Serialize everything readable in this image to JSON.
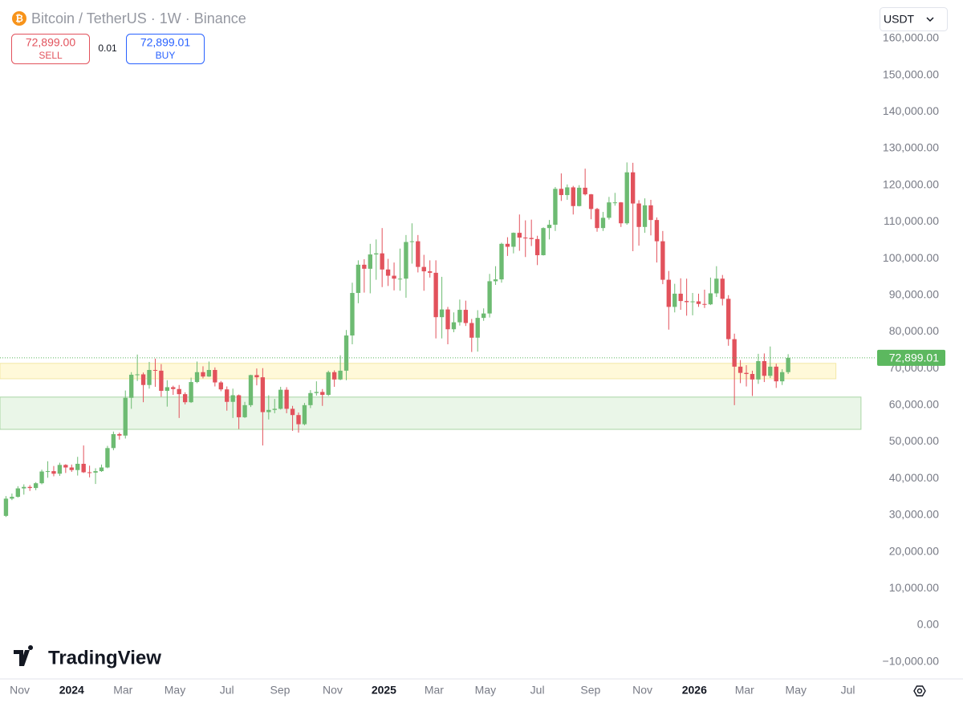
{
  "header": {
    "title": "Bitcoin / TetherUS · 1W · Binance",
    "sell_price": "72,899.00",
    "sell_label": "SELL",
    "spread": "0.01",
    "buy_price": "72,899.01",
    "buy_label": "BUY",
    "currency": "USDT",
    "brand": "TradingView"
  },
  "chart_data": {
    "type": "candlestick",
    "up_color": "#6dbb72",
    "down_color": "#e2525c",
    "ylim": [
      -14450,
      170500
    ],
    "xlim": [
      -1,
      145.5
    ],
    "grid": false,
    "yticks": [
      {
        "value": 160000,
        "label": "160,000.00"
      },
      {
        "value": 150000,
        "label": "150,000.00"
      },
      {
        "value": 140000,
        "label": "140,000.00"
      },
      {
        "value": 130000,
        "label": "130,000.00"
      },
      {
        "value": 120000,
        "label": "120,000.00"
      },
      {
        "value": 110000,
        "label": "110,000.00"
      },
      {
        "value": 100000,
        "label": "100,000.00"
      },
      {
        "value": 90000,
        "label": "90,000.00"
      },
      {
        "value": 80000,
        "label": "80,000.00"
      },
      {
        "value": 70000,
        "label": "70,000.00"
      },
      {
        "value": 60000,
        "label": "60,000.00"
      },
      {
        "value": 50000,
        "label": "50,000.00"
      },
      {
        "value": 40000,
        "label": "40,000.00"
      },
      {
        "value": 30000,
        "label": "30,000.00"
      },
      {
        "value": 20000,
        "label": "20,000.00"
      },
      {
        "value": 10000,
        "label": "10,000.00"
      },
      {
        "value": 0,
        "label": "0.00"
      },
      {
        "value": -10000,
        "label": "−10,000.00"
      }
    ],
    "xticks": [
      {
        "value": 2.3,
        "label": "Nov"
      },
      {
        "value": 11,
        "label": "2024"
      },
      {
        "value": 19.6,
        "label": "Mar"
      },
      {
        "value": 28.3,
        "label": "May"
      },
      {
        "value": 37,
        "label": "Jul"
      },
      {
        "value": 45.9,
        "label": "Sep"
      },
      {
        "value": 54.7,
        "label": "Nov"
      },
      {
        "value": 63.3,
        "label": "2025"
      },
      {
        "value": 71.7,
        "label": "Mar"
      },
      {
        "value": 80.3,
        "label": "May"
      },
      {
        "value": 89,
        "label": "Jul"
      },
      {
        "value": 97.9,
        "label": "Sep"
      },
      {
        "value": 106.6,
        "label": "Nov"
      },
      {
        "value": 115.3,
        "label": "2026"
      },
      {
        "value": 123.7,
        "label": "Mar"
      },
      {
        "value": 132.3,
        "label": "May"
      },
      {
        "value": 141,
        "label": "Jul"
      }
    ],
    "last_price": {
      "value": 72899.01,
      "label": "72,899.01",
      "color": "#5cb85f"
    },
    "zones": [
      {
        "from": 67200,
        "to": 71400,
        "x_end": 139,
        "color": "#fff9d9",
        "border": "#f3e7a6"
      },
      {
        "from": 53400,
        "to": 62200,
        "x_end": 143.2,
        "color": "#eaf6e8",
        "border": "#a9d6a5"
      }
    ],
    "candles": [
      [
        29800,
        35200,
        29500,
        34500
      ],
      [
        34500,
        35900,
        34100,
        35000
      ],
      [
        35000,
        37900,
        34800,
        37300
      ],
      [
        37300,
        38400,
        35600,
        37700
      ],
      [
        37700,
        38200,
        36600,
        37400
      ],
      [
        37400,
        39000,
        36800,
        38700
      ],
      [
        38700,
        42400,
        38400,
        41900
      ],
      [
        41900,
        44700,
        40200,
        42000
      ],
      [
        42000,
        43400,
        40600,
        41300
      ],
      [
        41300,
        44300,
        40700,
        43700
      ],
      [
        43700,
        43900,
        41500,
        43000
      ],
      [
        43000,
        43800,
        41800,
        42300
      ],
      [
        42300,
        45900,
        40800,
        44000
      ],
      [
        44000,
        49000,
        41500,
        41700
      ],
      [
        41700,
        43500,
        40300,
        41600
      ],
      [
        41600,
        42800,
        38500,
        42000
      ],
      [
        42000,
        43800,
        41800,
        43000
      ],
      [
        43000,
        48900,
        42800,
        48300
      ],
      [
        48300,
        52800,
        47700,
        52100
      ],
      [
        52100,
        52500,
        50600,
        51700
      ],
      [
        51700,
        64000,
        50900,
        62000
      ],
      [
        62000,
        69000,
        59000,
        68300
      ],
      [
        68300,
        73800,
        66600,
        68400
      ],
      [
        68400,
        68900,
        60800,
        65500
      ],
      [
        65500,
        71800,
        64500,
        69600
      ],
      [
        69600,
        72700,
        65000,
        69400
      ],
      [
        69400,
        71200,
        62300,
        63900
      ],
      [
        63900,
        66800,
        59600,
        64900
      ],
      [
        64900,
        65300,
        62800,
        64400
      ],
      [
        64400,
        65500,
        56500,
        63000
      ],
      [
        63000,
        63500,
        60200,
        60800
      ],
      [
        60800,
        67500,
        60600,
        66300
      ],
      [
        66300,
        71900,
        66000,
        69000
      ],
      [
        69000,
        70600,
        67300,
        67800
      ],
      [
        67800,
        71900,
        67700,
        69600
      ],
      [
        69600,
        70300,
        65100,
        66200
      ],
      [
        66200,
        66600,
        63800,
        64300
      ],
      [
        64300,
        65100,
        58500,
        60900
      ],
      [
        60900,
        64500,
        56500,
        62700
      ],
      [
        62700,
        62900,
        53500,
        56700
      ],
      [
        56700,
        60900,
        56500,
        60000
      ],
      [
        60000,
        68300,
        59500,
        68200
      ],
      [
        68200,
        70000,
        65400,
        67600
      ],
      [
        67600,
        70100,
        49000,
        58100
      ],
      [
        58100,
        62700,
        56100,
        58700
      ],
      [
        58700,
        61700,
        57800,
        59000
      ],
      [
        59000,
        65000,
        58800,
        64200
      ],
      [
        64200,
        64900,
        57800,
        59000
      ],
      [
        59000,
        59800,
        53000,
        57300
      ],
      [
        57300,
        58000,
        52500,
        54800
      ],
      [
        54800,
        60600,
        54500,
        60000
      ],
      [
        60000,
        64100,
        59200,
        63300
      ],
      [
        63300,
        66500,
        62600,
        63600
      ],
      [
        63600,
        64400,
        59800,
        62800
      ],
      [
        62800,
        69400,
        62500,
        69000
      ],
      [
        69000,
        69500,
        65000,
        67000
      ],
      [
        67000,
        73600,
        66800,
        69400
      ],
      [
        69400,
        80500,
        66800,
        79000
      ],
      [
        79000,
        93400,
        76600,
        90600
      ],
      [
        90600,
        99500,
        87800,
        98300
      ],
      [
        98300,
        99800,
        90700,
        97200
      ],
      [
        97200,
        104000,
        90500,
        101100
      ],
      [
        101100,
        105200,
        94200,
        101400
      ],
      [
        101400,
        108300,
        92200,
        97000
      ],
      [
        97000,
        99900,
        92500,
        95300
      ],
      [
        95300,
        98900,
        91300,
        94500
      ],
      [
        94500,
        102700,
        91200,
        94500
      ],
      [
        94500,
        106400,
        89300,
        104500
      ],
      [
        104500,
        109600,
        98600,
        104700
      ],
      [
        104700,
        106400,
        96200,
        97700
      ],
      [
        97700,
        101000,
        91200,
        96500
      ],
      [
        96500,
        99500,
        94800,
        96100
      ],
      [
        96100,
        99500,
        78200,
        84000
      ],
      [
        84000,
        95000,
        78200,
        86100
      ],
      [
        86100,
        86800,
        76600,
        80700
      ],
      [
        80700,
        85300,
        79900,
        82600
      ],
      [
        82600,
        88800,
        81700,
        86000
      ],
      [
        86000,
        88500,
        81600,
        82400
      ],
      [
        82400,
        83500,
        74500,
        78400
      ],
      [
        78400,
        85900,
        74600,
        83800
      ],
      [
        83800,
        86400,
        83000,
        85000
      ],
      [
        85000,
        95800,
        83900,
        93800
      ],
      [
        93800,
        97900,
        92800,
        94300
      ],
      [
        94300,
        104300,
        93400,
        104000
      ],
      [
        104000,
        105800,
        100700,
        103200
      ],
      [
        103200,
        107100,
        101400,
        107000
      ],
      [
        107000,
        112000,
        102100,
        105700
      ],
      [
        105700,
        110400,
        100400,
        105600
      ],
      [
        105600,
        110600,
        103400,
        105300
      ],
      [
        105300,
        106200,
        98200,
        100900
      ],
      [
        100900,
        108500,
        100800,
        108300
      ],
      [
        108300,
        110500,
        105200,
        109200
      ],
      [
        109200,
        119500,
        107500,
        119000
      ],
      [
        119000,
        123200,
        115700,
        117300
      ],
      [
        117300,
        120200,
        116000,
        119400
      ],
      [
        119400,
        119800,
        112000,
        114300
      ],
      [
        114300,
        120000,
        114200,
        119300
      ],
      [
        119300,
        124500,
        117200,
        117500
      ],
      [
        117500,
        117600,
        110700,
        113500
      ],
      [
        113500,
        113800,
        107300,
        108300
      ],
      [
        108300,
        112700,
        107500,
        111100
      ],
      [
        111100,
        116800,
        110600,
        115300
      ],
      [
        115300,
        117900,
        114400,
        115300
      ],
      [
        115300,
        115400,
        108600,
        109600
      ],
      [
        109600,
        126200,
        109200,
        123500
      ],
      [
        123500,
        126100,
        102000,
        115000
      ],
      [
        115000,
        115900,
        103500,
        108600
      ],
      [
        108600,
        116400,
        107000,
        114500
      ],
      [
        114500,
        116000,
        106300,
        110500
      ],
      [
        110500,
        111200,
        98900,
        104700
      ],
      [
        104700,
        107500,
        93000,
        94200
      ],
      [
        94200,
        96600,
        80600,
        86800
      ],
      [
        86800,
        93100,
        85300,
        90400
      ],
      [
        90400,
        94600,
        86000,
        88400
      ],
      [
        88400,
        94500,
        84400,
        88100
      ],
      [
        88100,
        90600,
        84500,
        88300
      ],
      [
        88300,
        90400,
        86800,
        87600
      ],
      [
        87600,
        91500,
        86500,
        87500
      ],
      [
        87500,
        94800,
        87300,
        90500
      ],
      [
        90500,
        97900,
        89500,
        94500
      ],
      [
        94500,
        95500,
        87200,
        89000
      ],
      [
        89000,
        90000,
        76200,
        78000
      ],
      [
        78000,
        79500,
        60000,
        70500
      ],
      [
        70500,
        72300,
        66000,
        68800
      ],
      [
        68800,
        70900,
        65100,
        68500
      ],
      [
        68500,
        69400,
        62500,
        67000
      ],
      [
        67000,
        74000,
        65800,
        72000
      ],
      [
        72000,
        74100,
        66300,
        68000
      ],
      [
        68000,
        76000,
        67400,
        70500
      ],
      [
        70500,
        71300,
        64700,
        66500
      ],
      [
        66500,
        69800,
        65500,
        69000
      ],
      [
        69000,
        73900,
        68500,
        72899.01
      ]
    ]
  }
}
